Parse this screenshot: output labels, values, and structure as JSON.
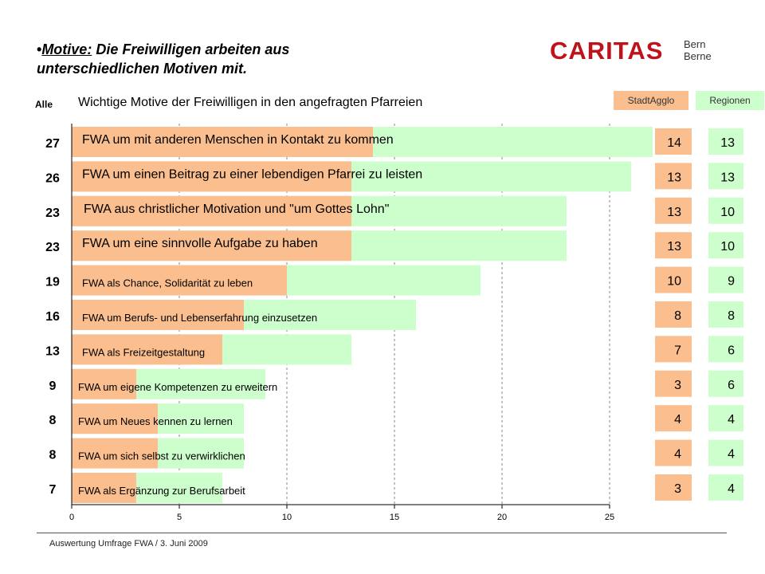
{
  "header": {
    "bullet": "•",
    "title_underlined": "Motive:",
    "title_rest": " Die Freiwilligen arbeiten aus",
    "title_line2": "unterschiedlichen Motiven mit.",
    "logo_word": "CARITAS",
    "logo_sub1": "Bern",
    "logo_sub2": "Berne"
  },
  "alle_label": "Alle",
  "colors": {
    "stadtagglo": "#fbbf8f",
    "regionen": "#ccffcc",
    "axis": "#000000"
  },
  "chart_data": {
    "type": "bar",
    "orientation": "horizontal",
    "stacked": true,
    "title": "Wichtige Motive der Freiwilligen in den angefragten Pfarreien",
    "categories": [
      "FWA um mit anderen Menschen in Kontakt zu kommen",
      "FWA um einen Beitrag zu einer lebendigen Pfarrei zu leisten",
      "FWA aus christlicher Motivation und \"um Gottes Lohn\"",
      "FWA um eine sinnvolle Aufgabe zu haben",
      "FWA als Chance, Solidarität zu leben",
      "FWA um Berufs- und Lebenserfahrung einzusetzen",
      "FWA als Freizeitgestaltung",
      "FWA um eigene Kompetenzen zu erweitern",
      "FWA um Neues kennen zu lernen",
      "FWA um sich selbst zu verwirklichen",
      "FWA als Ergänzung zur Berufsarbeit"
    ],
    "series": [
      {
        "name": "StadtAgglo",
        "values": [
          14,
          13,
          13,
          13,
          10,
          8,
          7,
          3,
          4,
          4,
          3
        ]
      },
      {
        "name": "Regionen",
        "values": [
          13,
          13,
          10,
          10,
          9,
          8,
          6,
          6,
          4,
          4,
          4
        ]
      }
    ],
    "totals_label": "Alle",
    "totals": [
      27,
      26,
      23,
      23,
      19,
      16,
      13,
      9,
      8,
      8,
      7
    ],
    "xlim": [
      0,
      25
    ],
    "xticks": [
      0,
      5,
      10,
      15,
      20,
      25
    ],
    "grid": "vertical dashed",
    "legend_placement": "top-right"
  },
  "footer": "Auswertung Umfrage FWA / 3. Juni 2009"
}
